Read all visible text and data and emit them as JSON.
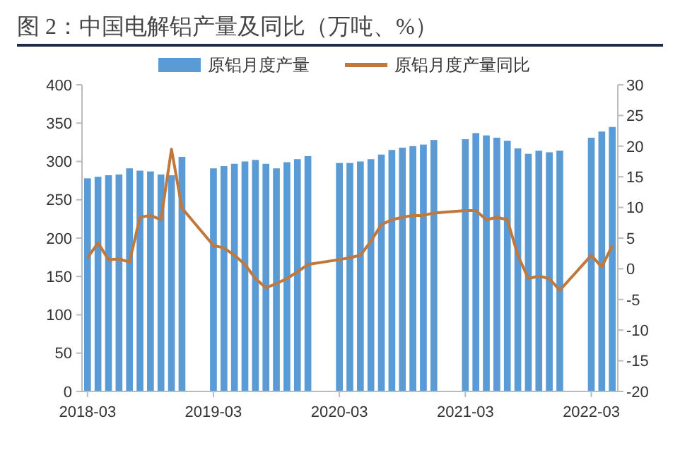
{
  "chart_data": {
    "type": "bar",
    "title": "图 2：中国电解铝产量及同比（万吨、%）",
    "categories": [
      "2018-03",
      null,
      null,
      null,
      null,
      null,
      null,
      null,
      null,
      null,
      null,
      null,
      "2019-03",
      null,
      null,
      null,
      null,
      null,
      null,
      null,
      null,
      null,
      null,
      null,
      "2020-03",
      null,
      null,
      null,
      null,
      null,
      null,
      null,
      null,
      null,
      null,
      null,
      "2021-03",
      null,
      null,
      null,
      null,
      null,
      null,
      null,
      null,
      null,
      null,
      null,
      "2022-03",
      null,
      null
    ],
    "series": [
      {
        "name": "原铝月度产量",
        "color": "#5b9bd5",
        "values": [
          278,
          280,
          282,
          283,
          291,
          288,
          287,
          283,
          282,
          306,
          null,
          null,
          291,
          294,
          297,
          300,
          302,
          297,
          291,
          299,
          303,
          307,
          null,
          null,
          298,
          298,
          300,
          303,
          309,
          315,
          318,
          320,
          322,
          328,
          null,
          null,
          329,
          337,
          334,
          331,
          327,
          317,
          310,
          314,
          312,
          314,
          null,
          null,
          331,
          339,
          345
        ]
      },
      {
        "name": "原铝月度产量同比",
        "type": "line",
        "axis": "y2",
        "color": "#c0783c",
        "values": [
          1.8,
          4.2,
          1.5,
          1.6,
          1.1,
          8.4,
          8.7,
          8.0,
          19.5,
          9.9,
          null,
          null,
          3.8,
          3.4,
          2.2,
          0.7,
          -1.6,
          -3.1,
          -2.4,
          -1.6,
          -0.5,
          0.7,
          null,
          null,
          1.5,
          1.8,
          2.2,
          4.5,
          7.2,
          8.0,
          8.4,
          8.7,
          8.7,
          9.1,
          null,
          null,
          9.5,
          9.5,
          8.0,
          8.4,
          8.0,
          2.2,
          -1.6,
          -1.2,
          -1.6,
          -3.5,
          null,
          null,
          2.2,
          0.3,
          3.8
        ]
      }
    ],
    "ylim": [
      0,
      400
    ],
    "yticks": [
      0,
      50,
      100,
      150,
      200,
      250,
      300,
      350,
      400
    ],
    "y2lim": [
      -20,
      30
    ],
    "y2ticks": [
      -20,
      -15,
      -10,
      -5,
      0,
      5,
      10,
      15,
      20,
      25,
      30
    ],
    "legend": "top",
    "grid": false
  }
}
